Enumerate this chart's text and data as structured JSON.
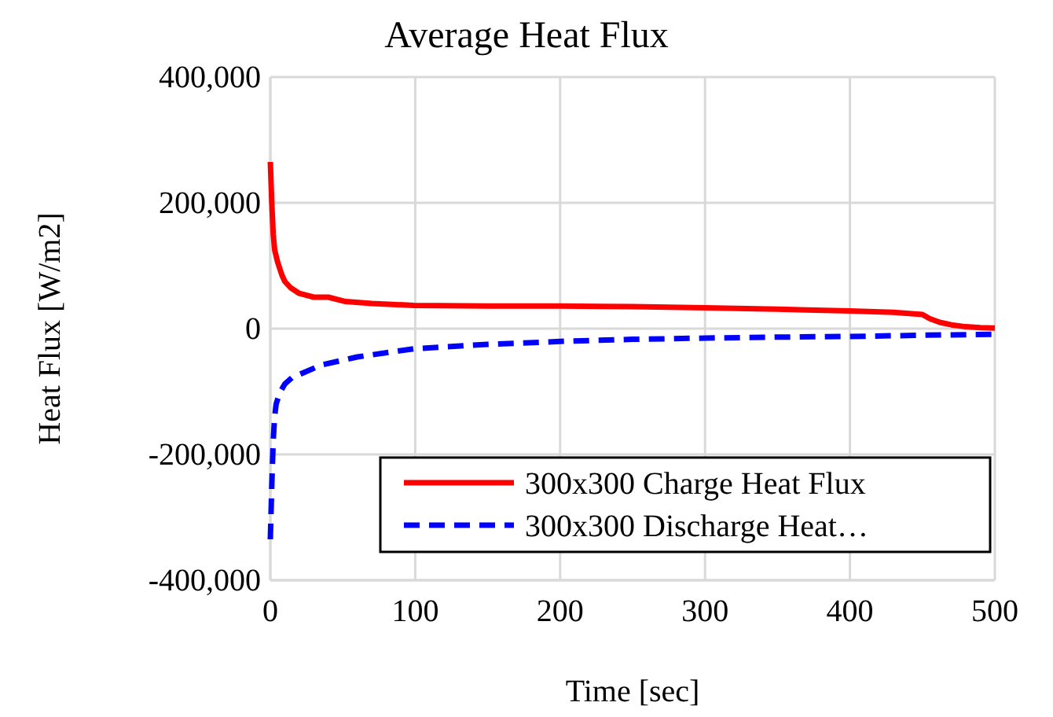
{
  "chart_data": {
    "type": "line",
    "title": "Average Heat Flux",
    "xlabel": "Time [sec]",
    "ylabel": "Heat Flux [W/m2]",
    "xlim": [
      0,
      500
    ],
    "xticks": [
      0,
      100,
      200,
      300,
      400,
      500
    ],
    "ylim": [
      -400000,
      400000
    ],
    "yticks": [
      {
        "value": -400000,
        "label": "-400,000"
      },
      {
        "value": -200000,
        "label": "-200,000"
      },
      {
        "value": 0,
        "label": "0"
      },
      {
        "value": 200000,
        "label": "200,000"
      },
      {
        "value": 400000,
        "label": "400,000"
      }
    ],
    "grid": true,
    "legend": "bottom right",
    "series": [
      {
        "name": "300x300 Charge Heat Flux",
        "color": "#ff0000",
        "line_style": "solid",
        "x": [
          0,
          1,
          2,
          3,
          5,
          8,
          10,
          14,
          20,
          30,
          40,
          52,
          70,
          99,
          150,
          200,
          250,
          300,
          350,
          400,
          430,
          450,
          455,
          462,
          470,
          480,
          490,
          500
        ],
        "values": [
          265000,
          200000,
          150000,
          125000,
          106000,
          85000,
          75000,
          65000,
          56000,
          50000,
          50000,
          43000,
          40000,
          37000,
          36000,
          36000,
          35000,
          33000,
          31000,
          28000,
          26000,
          22500,
          16000,
          10000,
          6000,
          3000,
          1500,
          1000
        ]
      },
      {
        "name": "300x300 Discharge Heat…",
        "color": "#0000ff",
        "line_style": "dashed",
        "x": [
          0,
          1,
          2,
          3,
          4,
          6.5,
          10,
          15,
          23,
          35,
          60,
          99,
          150,
          204,
          250,
          301,
          350,
          399,
          450,
          500
        ],
        "values": [
          -335000,
          -250000,
          -178000,
          -140000,
          -120000,
          -102000,
          -88000,
          -78000,
          -70000,
          -58000,
          -45000,
          -32000,
          -25000,
          -20000,
          -17000,
          -15000,
          -13500,
          -12500,
          -10500,
          -9000
        ]
      }
    ]
  }
}
